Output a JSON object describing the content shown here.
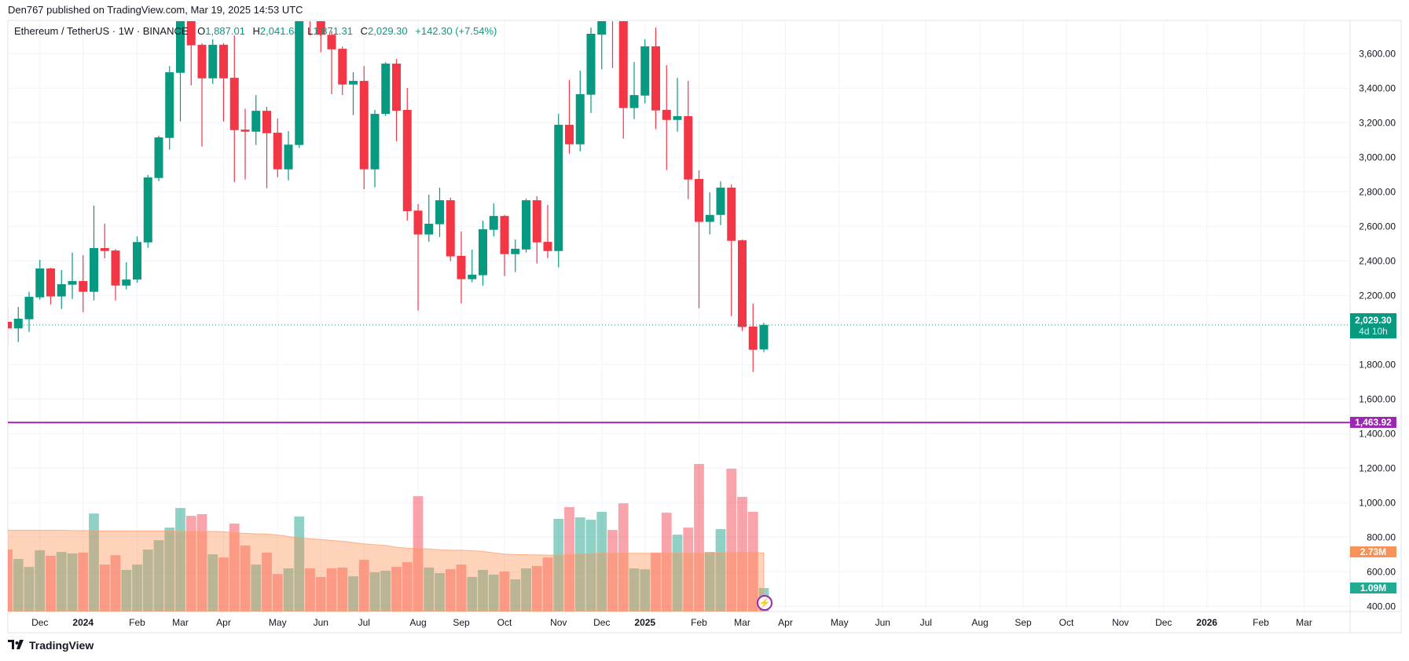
{
  "header": {
    "published": "Den767 published on TradingView.com, Mar 19, 2025 14:53 UTC"
  },
  "legend": {
    "symbol": "Ethereum / TetherUS · 1W · BINANCE",
    "o_label": "O",
    "o": "1,887.01",
    "h_label": "H",
    "h": "2,041.68",
    "l_label": "L",
    "l": "1,871.31",
    "c_label": "C",
    "c": "2,029.30",
    "change": "+142.30 (+7.54%)"
  },
  "tags": {
    "last_price": "2,029.30",
    "countdown": "4d 10h",
    "hline_price": "1,463.92",
    "volume_ma": "2.73M",
    "volume": "1.09M"
  },
  "footer": {
    "brand": "TradingView"
  },
  "colors": {
    "up": "#089981",
    "down": "#F23645",
    "hline": "#9c27b0",
    "ma": "#f7925a"
  },
  "icons": {
    "alert": "lightning-icon",
    "logo": "tradingview-logo-icon"
  },
  "chart_data": {
    "type": "candlestick",
    "title": "Ethereum / TetherUS · 1W · BINANCE",
    "ylim": [
      380,
      3800
    ],
    "hline": 1463.92,
    "last": 2029.3,
    "y_ticks": [
      "3,600.00",
      "3,400.00",
      "3,200.00",
      "3,000.00",
      "2,800.00",
      "2,600.00",
      "2,400.00",
      "2,200.00",
      "1,800.00",
      "1,600.00",
      "1,400.00",
      "1,200.00",
      "1,000.00",
      "800.00",
      "600.00",
      "400.00"
    ],
    "y_tick_values": [
      3600,
      3400,
      3200,
      3000,
      2800,
      2600,
      2400,
      2200,
      1800,
      1600,
      1400,
      1200,
      1000,
      800,
      600,
      400
    ],
    "x_ticks": [
      "Dec",
      "2024",
      "Feb",
      "Mar",
      "Apr",
      "May",
      "Jun",
      "Jul",
      "Aug",
      "Sep",
      "Oct",
      "Nov",
      "Dec",
      "2025",
      "Feb",
      "Mar",
      "Apr",
      "May",
      "Jun",
      "Jul",
      "Aug",
      "Sep",
      "Oct",
      "Nov",
      "Dec",
      "2026",
      "Feb",
      "Mar"
    ],
    "x_tick_weeks": [
      3,
      7,
      12,
      16,
      20,
      25,
      29,
      33,
      38,
      42,
      46,
      51,
      55,
      59,
      64,
      68,
      72,
      77,
      81,
      85,
      90,
      94,
      98,
      103,
      107,
      111,
      116,
      120
    ],
    "ohlc": [
      [
        2047,
        2123,
        1910,
        2009
      ],
      [
        2009,
        2133,
        1930,
        2065
      ],
      [
        2062,
        2221,
        1989,
        2192
      ],
      [
        2189,
        2406,
        2175,
        2356
      ],
      [
        2356,
        2360,
        2148,
        2194
      ],
      [
        2194,
        2347,
        2121,
        2265
      ],
      [
        2262,
        2447,
        2179,
        2283
      ],
      [
        2283,
        2433,
        2103,
        2221
      ],
      [
        2221,
        2720,
        2171,
        2474
      ],
      [
        2474,
        2615,
        2415,
        2457
      ],
      [
        2460,
        2468,
        2171,
        2257
      ],
      [
        2257,
        2392,
        2235,
        2292
      ],
      [
        2292,
        2542,
        2273,
        2509
      ],
      [
        2507,
        2897,
        2476,
        2883
      ],
      [
        2880,
        3124,
        2862,
        3115
      ],
      [
        3112,
        3528,
        3044,
        3492
      ],
      [
        3489,
        4093,
        3207,
        3880
      ],
      [
        3880,
        4093,
        3416,
        3648
      ],
      [
        3651,
        3660,
        3062,
        3457
      ],
      [
        3457,
        3683,
        3425,
        3651
      ],
      [
        3651,
        3660,
        3207,
        3457
      ],
      [
        3460,
        3706,
        2857,
        3157
      ],
      [
        3160,
        3281,
        2871,
        3148
      ],
      [
        3148,
        3360,
        3071,
        3269
      ],
      [
        3269,
        3292,
        2821,
        3139
      ],
      [
        3142,
        3224,
        2885,
        2930
      ],
      [
        2930,
        3151,
        2866,
        3073
      ],
      [
        3071,
        3977,
        3053,
        3826
      ],
      [
        3826,
        3977,
        3706,
        3813
      ],
      [
        3813,
        3887,
        3607,
        3709
      ],
      [
        3709,
        3730,
        3365,
        3625
      ],
      [
        3628,
        3641,
        3360,
        3421
      ],
      [
        3421,
        3492,
        3244,
        3442
      ],
      [
        3442,
        3528,
        2815,
        2930
      ],
      [
        2930,
        3274,
        2826,
        3251
      ],
      [
        3251,
        3551,
        3239,
        3542
      ],
      [
        3542,
        3569,
        3092,
        3269
      ],
      [
        3274,
        3401,
        2633,
        2688
      ],
      [
        2691,
        2729,
        2112,
        2553
      ],
      [
        2553,
        2783,
        2511,
        2615
      ],
      [
        2612,
        2824,
        2538,
        2751
      ],
      [
        2751,
        2766,
        2398,
        2426
      ],
      [
        2429,
        2570,
        2153,
        2294
      ],
      [
        2294,
        2465,
        2276,
        2320
      ],
      [
        2317,
        2633,
        2257,
        2583
      ],
      [
        2580,
        2733,
        2542,
        2660
      ],
      [
        2660,
        2666,
        2312,
        2439
      ],
      [
        2439,
        2524,
        2335,
        2470
      ],
      [
        2466,
        2760,
        2448,
        2751
      ],
      [
        2751,
        2774,
        2385,
        2507
      ],
      [
        2510,
        2724,
        2416,
        2457
      ],
      [
        2457,
        3251,
        2362,
        3188
      ],
      [
        3188,
        3447,
        3021,
        3075
      ],
      [
        3075,
        3501,
        3034,
        3365
      ],
      [
        3362,
        3751,
        3257,
        3715
      ],
      [
        3710,
        3987,
        3509,
        3880
      ],
      [
        3998,
        4109,
        3516,
        3870
      ],
      [
        3870,
        4000,
        3107,
        3285
      ],
      [
        3285,
        3551,
        3221,
        3360
      ],
      [
        3357,
        3683,
        3312,
        3642
      ],
      [
        3642,
        3751,
        3163,
        3271
      ],
      [
        3274,
        3533,
        2926,
        3216
      ],
      [
        3216,
        3460,
        3148,
        3238
      ],
      [
        3238,
        3442,
        2757,
        2871
      ],
      [
        2874,
        2924,
        2126,
        2626
      ],
      [
        2626,
        2797,
        2553,
        2666
      ],
      [
        2666,
        2860,
        2607,
        2824
      ],
      [
        2824,
        2842,
        2080,
        2516
      ],
      [
        2519,
        2524,
        1994,
        2017
      ],
      [
        2020,
        2153,
        1757,
        1885
      ],
      [
        1887.01,
        2041.68,
        1871.31,
        2029.3
      ]
    ],
    "volume_millions": [
      2.89,
      2.45,
      2.08,
      2.86,
      2.6,
      2.78,
      2.71,
      2.75,
      4.58,
      2.19,
      2.63,
      1.94,
      2.19,
      2.89,
      3.33,
      3.92,
      4.84,
      4.47,
      4.55,
      2.67,
      2.52,
      4.11,
      3.08,
      2.19,
      2.75,
      1.75,
      2.01,
      4.44,
      2.01,
      1.61,
      2.01,
      2.05,
      1.64,
      2.41,
      1.83,
      1.9,
      2.08,
      2.3,
      5.39,
      2.05,
      1.79,
      1.97,
      2.19,
      1.61,
      1.94,
      1.72,
      1.86,
      1.5,
      2.01,
      2.12,
      2.52,
      4.33,
      4.88,
      4.4,
      4.29,
      4.66,
      3.81,
      5.06,
      2.01,
      1.97,
      2.75,
      4.62,
      3.59,
      3.92,
      6.9,
      2.78,
      3.85,
      6.68,
      5.36,
      4.66,
      1.09
    ],
    "volume_ma_millions": [
      3.8,
      3.8,
      3.8,
      3.8,
      3.8,
      3.8,
      3.78,
      3.78,
      3.77,
      3.76,
      3.76,
      3.76,
      3.76,
      3.76,
      3.76,
      3.76,
      3.74,
      3.74,
      3.74,
      3.74,
      3.73,
      3.68,
      3.65,
      3.63,
      3.62,
      3.58,
      3.5,
      3.44,
      3.4,
      3.36,
      3.32,
      3.28,
      3.22,
      3.16,
      3.12,
      3.08,
      3.0,
      2.96,
      2.94,
      2.92,
      2.88,
      2.86,
      2.86,
      2.84,
      2.8,
      2.74,
      2.68,
      2.66,
      2.65,
      2.64,
      2.63,
      2.63,
      2.65,
      2.68,
      2.7,
      2.72,
      2.72,
      2.72,
      2.72,
      2.72,
      2.72,
      2.72,
      2.72,
      2.72,
      2.72,
      2.72,
      2.74,
      2.75,
      2.76,
      2.76,
      2.73
    ]
  }
}
